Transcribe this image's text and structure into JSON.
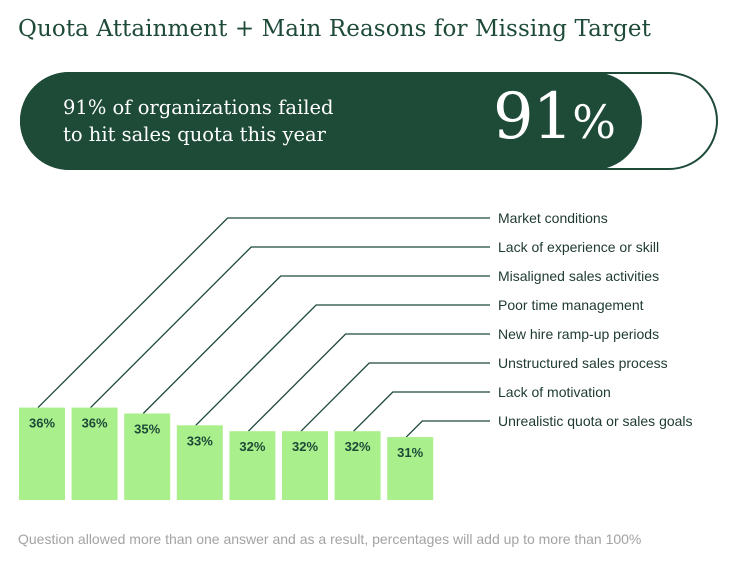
{
  "title": "Quota Attainment + Main Reasons for Missing Target",
  "banner": {
    "line1": "91% of organizations failed",
    "line2": "to hit sales quota this year",
    "big_number": "91",
    "big_unit": "%"
  },
  "colors": {
    "dark_green": "#1e4a38",
    "bar_green": "#a9ef8c",
    "label_text": "#1e3a2f",
    "footnote": "#a3a3a3"
  },
  "chart_data": {
    "type": "bar",
    "title": "",
    "xlabel": "",
    "ylabel": "",
    "ylim": [
      0,
      40
    ],
    "categories": [
      "Market conditions",
      "Lack of experience or skill",
      "Misaligned sales activities",
      "Poor time management",
      "New hire ramp-up periods",
      "Unstructured sales process",
      "Lack of motivation",
      "Unrealistic quota or sales goals"
    ],
    "values": [
      36,
      36,
      35,
      33,
      32,
      32,
      32,
      31
    ],
    "value_labels": [
      "36%",
      "36%",
      "35%",
      "33%",
      "32%",
      "32%",
      "32%",
      "31%"
    ]
  },
  "footnote": "Question allowed more than one answer and as a result, percentages will add up to more than 100%"
}
